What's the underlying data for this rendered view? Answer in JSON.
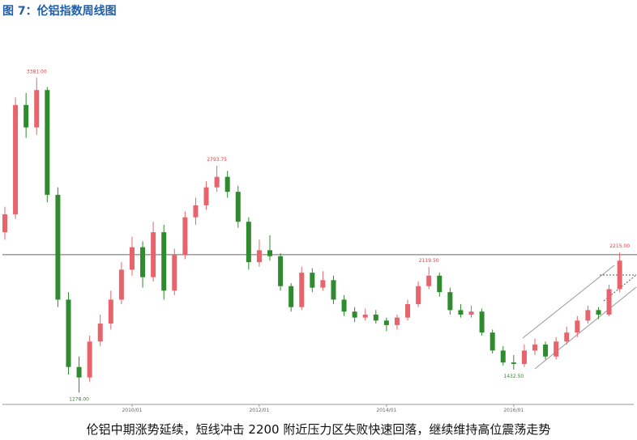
{
  "title": "图 7：伦铝指数周线图",
  "caption": "伦铝中期涨势延续，短线冲击 2200 附近压力区失败快速回落，继续维持高位震荡走势",
  "chart_data": {
    "type": "candlestick",
    "x": [
      "2008/01",
      "2008/03",
      "2008/05",
      "2008/07",
      "2008/09",
      "2008/11",
      "2009/01",
      "2009/03",
      "2009/05",
      "2009/07",
      "2009/09",
      "2009/11",
      "2010/01",
      "2010/03",
      "2010/05",
      "2010/07",
      "2010/09",
      "2010/11",
      "2011/01",
      "2011/03",
      "2011/05",
      "2011/07",
      "2011/09",
      "2011/11",
      "2012/01",
      "2012/03",
      "2012/05",
      "2012/07",
      "2012/09",
      "2012/11",
      "2013/01",
      "2013/03",
      "2013/05",
      "2013/07",
      "2013/09",
      "2013/11",
      "2014/01",
      "2014/03",
      "2014/05",
      "2014/07",
      "2014/09",
      "2014/11",
      "2015/01",
      "2015/03",
      "2015/05",
      "2015/07",
      "2015/09",
      "2015/11",
      "2016/01",
      "2016/03",
      "2016/05",
      "2016/07",
      "2016/09",
      "2016/11",
      "2017/01",
      "2017/03",
      "2017/05",
      "2017/07",
      "2017/09"
    ],
    "open": [
      2350,
      2470,
      3200,
      3050,
      3300,
      2600,
      1900,
      1450,
      1380,
      1620,
      1740,
      1900,
      2100,
      2250,
      2050,
      2350,
      1960,
      2200,
      2450,
      2530,
      2650,
      2720,
      2620,
      2420,
      2150,
      2230,
      2190,
      1990,
      1850,
      2080,
      1980,
      2030,
      1900,
      1820,
      1780,
      1800,
      1760,
      1730,
      1780,
      1870,
      1990,
      2060,
      1950,
      1830,
      1800,
      1820,
      1680,
      1560,
      1480,
      1470,
      1560,
      1600,
      1520,
      1620,
      1680,
      1760,
      1830,
      1800,
      1970
    ],
    "high": [
      2520,
      3250,
      3280,
      3381,
      3320,
      2650,
      1950,
      1520,
      1660,
      1800,
      1960,
      2150,
      2320,
      2290,
      2420,
      2400,
      2240,
      2490,
      2580,
      2690,
      2793.75,
      2760,
      2660,
      2450,
      2300,
      2330,
      2210,
      2010,
      2120,
      2110,
      2090,
      2060,
      1930,
      1850,
      1840,
      1830,
      1780,
      1800,
      1900,
      2020,
      2119.5,
      2080,
      1980,
      1870,
      1860,
      1840,
      1700,
      1590,
      1530,
      1600,
      1640,
      1620,
      1650,
      1720,
      1790,
      1860,
      1850,
      2000,
      2215
    ],
    "low": [
      2300,
      2440,
      2980,
      3000,
      2550,
      1850,
      1400,
      1278,
      1350,
      1590,
      1700,
      1870,
      2060,
      1980,
      2020,
      1900,
      1930,
      2170,
      2400,
      2500,
      2620,
      2580,
      2380,
      2100,
      2120,
      2160,
      1960,
      1820,
      1830,
      1950,
      1960,
      1870,
      1790,
      1750,
      1760,
      1740,
      1690,
      1700,
      1760,
      1850,
      1970,
      1920,
      1800,
      1780,
      1780,
      1660,
      1540,
      1460,
      1432.5,
      1450,
      1530,
      1500,
      1500,
      1600,
      1650,
      1740,
      1770,
      1790,
      1950
    ],
    "close": [
      2470,
      3200,
      3050,
      3300,
      2600,
      1900,
      1450,
      1380,
      1620,
      1740,
      1900,
      2100,
      2250,
      2050,
      2350,
      1960,
      2200,
      2450,
      2530,
      2650,
      2720,
      2620,
      2420,
      2150,
      2230,
      2190,
      1990,
      1850,
      2080,
      1980,
      2030,
      1900,
      1820,
      1780,
      1800,
      1760,
      1730,
      1780,
      1870,
      1990,
      2060,
      1950,
      1830,
      1800,
      1820,
      1680,
      1560,
      1480,
      1470,
      1560,
      1600,
      1520,
      1620,
      1680,
      1760,
      1830,
      1800,
      1970,
      2160
    ],
    "up_color": "#e8646c",
    "down_color": "#2e8b2e",
    "ylim": [
      1200,
      3750
    ],
    "xticks": [
      "2010/01",
      "2012/01",
      "2014/01",
      "2016/01"
    ],
    "reference_line": 2200,
    "annotations": [
      {
        "x": "2008/07",
        "value": 3381,
        "label": "3381.00",
        "color": "#e04040"
      },
      {
        "x": "2011/05",
        "value": 2793.75,
        "label": "2793.75",
        "color": "#e04040"
      },
      {
        "x": "2014/09",
        "value": 2119.5,
        "label": "2119.50",
        "color": "#e04040"
      },
      {
        "x": "2017/09",
        "value": 2215,
        "label": "2215.00",
        "color": "#e04040"
      },
      {
        "x": "2009/03",
        "value": 1278,
        "label": "1278.00",
        "color": "#2e8b2e"
      },
      {
        "x": "2016/01",
        "value": 1432.5,
        "label": "1432.50",
        "color": "#2e8b2e"
      }
    ]
  }
}
